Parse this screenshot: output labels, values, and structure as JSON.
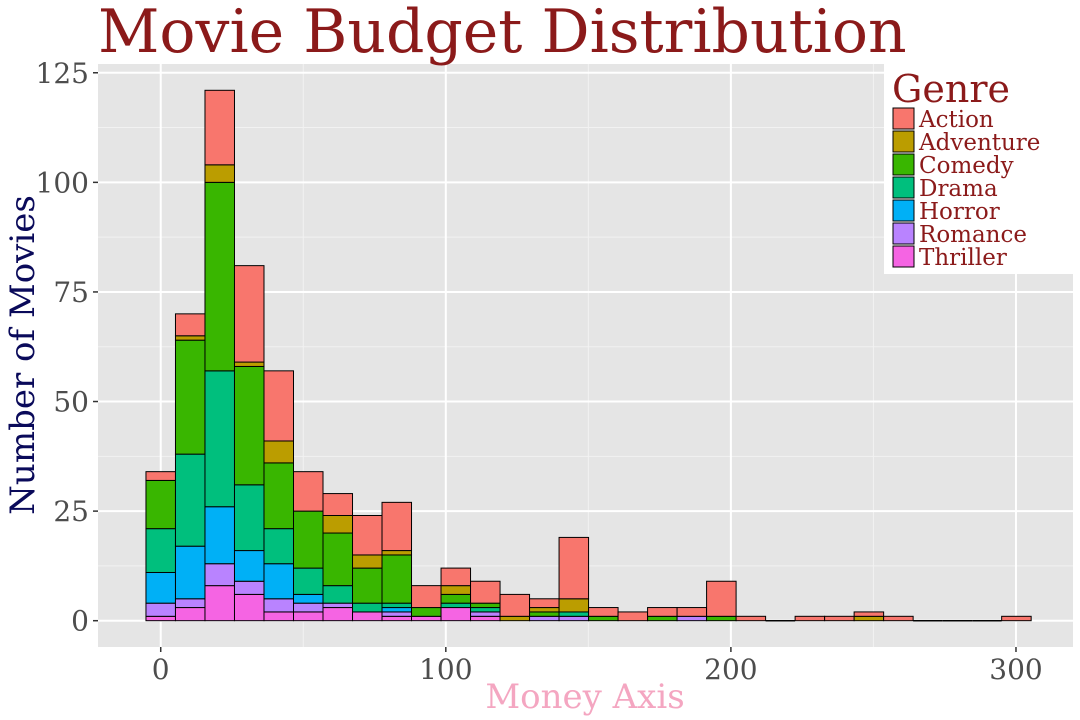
{
  "chart_data": {
    "type": "bar",
    "title": "Movie Budget Distribution",
    "xlabel": "Money Axis",
    "ylabel": "Number of Movies",
    "xlim": [
      -22,
      320
    ],
    "ylim": [
      -6,
      127
    ],
    "bin_width": 10.35,
    "x_ticks": [
      0,
      100,
      200,
      300
    ],
    "y_ticks": [
      0,
      25,
      50,
      75,
      100,
      125
    ],
    "grid": true,
    "legend": {
      "title": "Genre",
      "placement": "top-right"
    },
    "bins": [
      0.0,
      10.35,
      20.7,
      31.05,
      41.4,
      51.75,
      62.1,
      72.45,
      82.8,
      93.15,
      103.5,
      113.85,
      124.2,
      134.55,
      144.9,
      155.25,
      165.6,
      175.95,
      186.3,
      196.65,
      207.0,
      217.35,
      227.7,
      238.05,
      248.4,
      258.75,
      269.1,
      279.45,
      289.8,
      300.15
    ],
    "series": [
      {
        "name": "Thriller",
        "color": "#F564E3",
        "values": [
          1,
          3,
          8,
          6,
          2,
          2,
          3,
          2,
          1,
          1,
          3,
          1,
          0,
          0,
          0,
          0,
          0,
          0,
          0,
          0,
          0,
          0,
          0,
          0,
          0,
          0,
          0,
          0,
          0,
          0
        ]
      },
      {
        "name": "Romance",
        "color": "#B983FF",
        "values": [
          3,
          2,
          5,
          3,
          3,
          2,
          1,
          0,
          1,
          0,
          0,
          1,
          0,
          1,
          1,
          0,
          0,
          0,
          1,
          0,
          0,
          0,
          0,
          0,
          0,
          0,
          0,
          0,
          0,
          0
        ]
      },
      {
        "name": "Horror",
        "color": "#00B0F6",
        "values": [
          7,
          12,
          13,
          7,
          8,
          2,
          0,
          0,
          1,
          0,
          0,
          0,
          0,
          0,
          0,
          0,
          0,
          0,
          0,
          0,
          0,
          0,
          0,
          0,
          0,
          0,
          0,
          0,
          0,
          0
        ]
      },
      {
        "name": "Drama",
        "color": "#00BF7D",
        "values": [
          10,
          21,
          31,
          15,
          8,
          6,
          4,
          2,
          1,
          0,
          1,
          1,
          0,
          0,
          1,
          0,
          0,
          0,
          0,
          0,
          0,
          0,
          0,
          0,
          0,
          0,
          0,
          0,
          0,
          0
        ]
      },
      {
        "name": "Comedy",
        "color": "#39B600",
        "values": [
          11,
          26,
          43,
          27,
          15,
          13,
          12,
          8,
          11,
          2,
          2,
          1,
          0,
          1,
          0,
          1,
          0,
          1,
          0,
          1,
          0,
          0,
          0,
          0,
          0,
          0,
          0,
          0,
          0,
          0
        ]
      },
      {
        "name": "Adventure",
        "color": "#BB9D00",
        "values": [
          0,
          1,
          4,
          1,
          5,
          0,
          4,
          3,
          1,
          0,
          2,
          0,
          1,
          1,
          3,
          0,
          0,
          0,
          0,
          0,
          0,
          0,
          0,
          0,
          1,
          0,
          0,
          0,
          0,
          0
        ]
      },
      {
        "name": "Action",
        "color": "#F8766D",
        "values": [
          2,
          5,
          17,
          22,
          16,
          9,
          5,
          9,
          11,
          5,
          4,
          5,
          5,
          2,
          14,
          2,
          2,
          2,
          2,
          8,
          1,
          0,
          1,
          1,
          1,
          1,
          0,
          0,
          0,
          1
        ]
      }
    ]
  }
}
